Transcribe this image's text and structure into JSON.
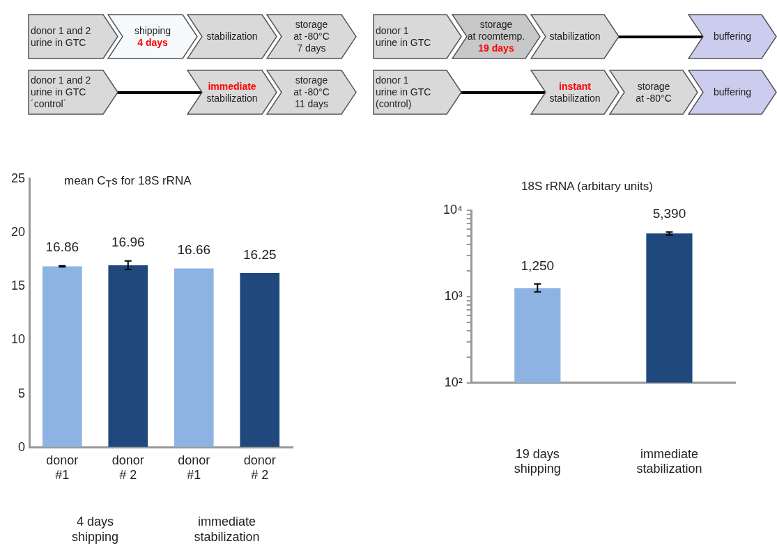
{
  "chart_data": [
    {
      "type": "other",
      "annotations": [
        "donor 1 and 2\nurine in GTC",
        "shipping",
        "4 days",
        "stabilization",
        "storage\nat -80°C\n7 days",
        "donor 1 and 2\nurine in GTC\n´control´",
        "immediate",
        "stabilization",
        "storage\nat -80°C\n11 days"
      ]
    },
    {
      "type": "other",
      "annotations": [
        "donor 1\nurine in GTC",
        "storage\nat roomtemp.",
        "19 days",
        "stabilization",
        "buffering",
        "donor 1\nurine in GTC\n(control)",
        "instant",
        "stabilization",
        "storage\nat -80°C",
        "buffering"
      ]
    },
    {
      "type": "bar",
      "title": "mean C$_{T}$s for 18S rRNA",
      "categories": [
        "donor\n#1",
        "donor\n# 2",
        "donor\n#1",
        "donor\n# 2"
      ],
      "values": [
        16.86,
        16.96,
        16.66,
        16.25
      ],
      "colors": [
        "#8db3e2",
        "#1f497d",
        "#8db3e2",
        "#1f497d"
      ],
      "errors": [
        0.05,
        0.4,
        null,
        null
      ],
      "data_labels": true,
      "ylim": [
        0,
        25
      ],
      "yticks": [
        0,
        5,
        10,
        15,
        20,
        25
      ],
      "annotations": [
        "4 days\nshipping",
        "immediate\nstabilization"
      ]
    },
    {
      "type": "bar",
      "title": "18S rRNA (arbitary units)",
      "categories": [
        "19 days\nshipping",
        "immediate\nstabilization"
      ],
      "values": [
        1250,
        5390
      ],
      "colors": [
        "#8db3e2",
        "#1f497d"
      ],
      "errors": [
        [
          1130,
          1400
        ],
        [
          5180,
          5600
        ]
      ],
      "value_labels": [
        "1,250",
        "5,390"
      ],
      "log": true,
      "ylim": [
        100,
        10000
      ],
      "yticks": [
        {
          "value": 100,
          "label": "10²"
        },
        {
          "value": 200,
          "label": null
        },
        {
          "value": 300,
          "label": null
        },
        {
          "value": 400,
          "label": null
        },
        {
          "value": 500,
          "label": null
        },
        {
          "value": 600,
          "label": null
        },
        {
          "value": 700,
          "label": null
        },
        {
          "value": 800,
          "label": null
        },
        {
          "value": 900,
          "label": null
        },
        {
          "value": 1000,
          "label": "10³"
        },
        {
          "value": 2000,
          "label": null
        },
        {
          "value": 3000,
          "label": null
        },
        {
          "value": 4000,
          "label": null
        },
        {
          "value": 5000,
          "label": null
        },
        {
          "value": 6000,
          "label": null
        },
        {
          "value": 7000,
          "label": null
        },
        {
          "value": 8000,
          "label": null
        },
        {
          "value": 9000,
          "label": null
        },
        {
          "value": 10000,
          "label": "10⁴"
        }
      ]
    }
  ]
}
